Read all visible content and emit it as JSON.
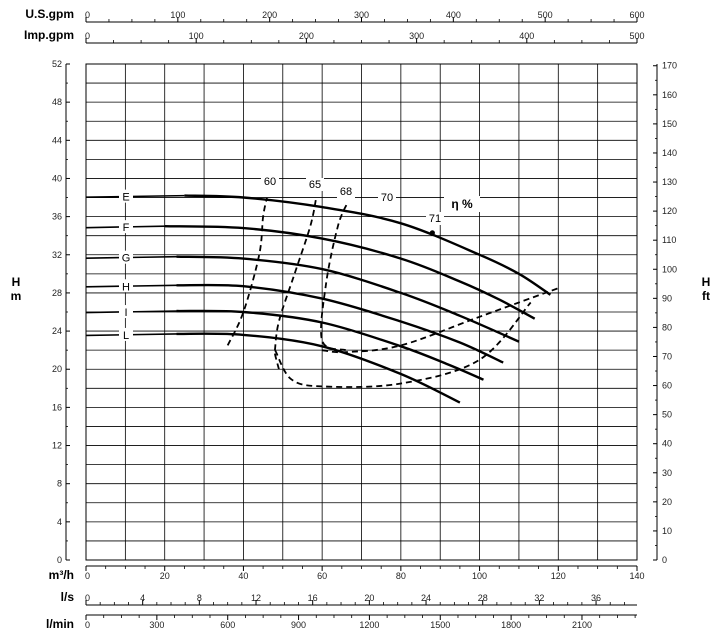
{
  "chart_data": {
    "type": "line",
    "x_axes": [
      {
        "label": "U.S.gpm",
        "min": 0,
        "max": 600,
        "ticks": [
          0,
          100,
          200,
          300,
          400,
          500,
          600
        ]
      },
      {
        "label": "Imp.gpm",
        "min": 0,
        "max": 500,
        "ticks": [
          0,
          100,
          200,
          300,
          400,
          500
        ]
      },
      {
        "label": "m³/h",
        "min": 0,
        "max": 140,
        "ticks": [
          0,
          20,
          40,
          60,
          80,
          100,
          120,
          140
        ]
      },
      {
        "label": "l/s",
        "min": 0,
        "max": 38.89,
        "ticks": [
          0,
          4,
          8,
          12,
          16,
          20,
          24,
          28,
          32,
          36
        ]
      },
      {
        "label": "l/min",
        "min": 0,
        "max": 2333,
        "ticks": [
          0,
          300,
          600,
          900,
          1200,
          1500,
          1800,
          2100
        ]
      }
    ],
    "y_axes": [
      {
        "side": "left",
        "label_top": "H",
        "label_bottom": "m",
        "min": 0,
        "max": 52,
        "ticks": [
          0,
          4,
          8,
          12,
          16,
          20,
          24,
          28,
          32,
          36,
          40,
          44,
          48,
          52
        ]
      },
      {
        "side": "right",
        "label_top": "H",
        "label_bottom": "ft",
        "min": 0,
        "max": 170.6,
        "ticks": [
          0,
          10,
          20,
          30,
          40,
          50,
          60,
          70,
          80,
          90,
          100,
          110,
          120,
          130,
          140,
          150,
          160,
          170
        ]
      }
    ],
    "grid": true,
    "series": [
      {
        "name": "E",
        "style": "solid",
        "x": [
          25,
          40,
          60,
          80,
          100,
          110,
          118
        ],
        "y": [
          38.2,
          38.0,
          37.0,
          35.3,
          32.0,
          30.0,
          27.8
        ]
      },
      {
        "name": "F",
        "style": "solid",
        "x": [
          20,
          40,
          60,
          80,
          95,
          105,
          114
        ],
        "y": [
          35.0,
          34.8,
          33.7,
          31.6,
          29.2,
          27.3,
          25.3
        ]
      },
      {
        "name": "G",
        "style": "solid",
        "x": [
          23,
          40,
          60,
          80,
          95,
          110
        ],
        "y": [
          31.8,
          31.6,
          30.5,
          28.0,
          25.6,
          22.9
        ]
      },
      {
        "name": "H",
        "style": "solid",
        "x": [
          23,
          40,
          60,
          80,
          95,
          106
        ],
        "y": [
          28.8,
          28.7,
          27.4,
          25.0,
          22.8,
          20.7
        ]
      },
      {
        "name": "I",
        "style": "solid",
        "x": [
          23,
          40,
          60,
          80,
          92,
          101
        ],
        "y": [
          26.1,
          26.0,
          24.9,
          22.4,
          20.5,
          18.9
        ]
      },
      {
        "name": "L",
        "style": "solid",
        "x": [
          23,
          40,
          60,
          80,
          95
        ],
        "y": [
          23.7,
          23.6,
          22.4,
          19.5,
          16.5
        ]
      },
      {
        "name": "60",
        "style": "dashed",
        "x": [
          36,
          40,
          44,
          45,
          46
        ],
        "y": [
          22.5,
          26.0,
          32.0,
          36.0,
          38.0
        ]
      },
      {
        "name": "65",
        "style": "dashed",
        "x": [
          48,
          49,
          53,
          57,
          58.5
        ],
        "y": [
          22.0,
          25.0,
          30.0,
          35.0,
          38.0
        ]
      },
      {
        "name": "68",
        "style": "dashed",
        "x": [
          49,
          48,
          52,
          60,
          80,
          100,
          113
        ],
        "y": [
          20.0,
          22.0,
          19.0,
          18.2,
          18.5,
          21.0,
          27.0
        ]
      },
      {
        "name": "70",
        "style": "dashed",
        "x": [
          66,
          60,
          61,
          64,
          66.5
        ],
        "y": [
          22.0,
          23.0,
          29.0,
          35.0,
          37.5
        ]
      },
      {
        "name": "71",
        "style": "dashed",
        "x": [
          60,
          66,
          80,
          100,
          120
        ],
        "y": [
          22.0,
          21.8,
          22.5,
          25.5,
          28.5
        ]
      }
    ],
    "efficiency_legend": "η %",
    "annotations": {
      "efficiency_labels": [
        "60",
        "65",
        "68",
        "70",
        "71"
      ],
      "curve_labels": [
        "E",
        "F",
        "G",
        "H",
        "I",
        "L"
      ],
      "marker_point": {
        "x": 88,
        "y": 34.3
      }
    }
  }
}
